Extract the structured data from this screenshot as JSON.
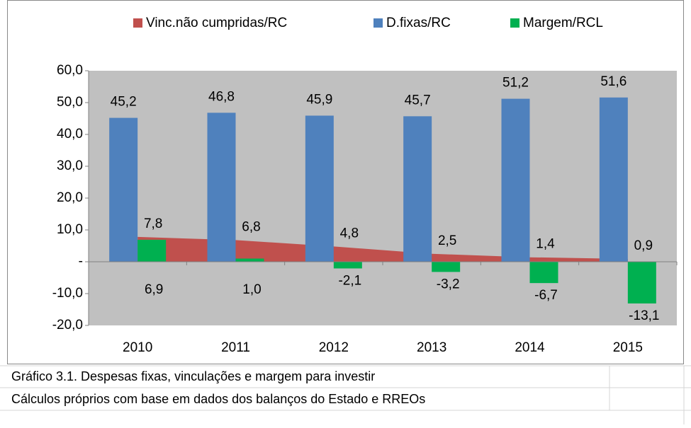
{
  "chart_data": {
    "type": "combo",
    "categories": [
      "2010",
      "2011",
      "2012",
      "2013",
      "2014",
      "2015"
    ],
    "series": [
      {
        "name": "Vinc.não cumpridas/RC",
        "color": "#c0504d",
        "kind": "area",
        "values": [
          7.8,
          6.8,
          4.8,
          2.5,
          1.4,
          0.9
        ],
        "value_labels": [
          "7,8",
          "6,8",
          "4,8",
          "2,5",
          "1,4",
          "0,9"
        ]
      },
      {
        "name": "D.fixas/RC",
        "color": "#4f81bd",
        "kind": "bar",
        "values": [
          45.2,
          46.8,
          45.9,
          45.7,
          51.2,
          51.6
        ],
        "value_labels": [
          "45,2",
          "46,8",
          "45,9",
          "45,7",
          "51,2",
          "51,6"
        ]
      },
      {
        "name": "Margem/RCL",
        "color": "#00b050",
        "kind": "bar",
        "values": [
          6.9,
          1.0,
          -2.1,
          -3.2,
          -6.7,
          -13.1
        ],
        "value_labels": [
          "6,9",
          "1,0",
          "-2,1",
          "-3,2",
          "-6,7",
          "-13,1"
        ]
      }
    ],
    "ylim": [
      -20,
      60
    ],
    "yticks": [
      {
        "value": -20,
        "label": "-20,0"
      },
      {
        "value": -10,
        "label": "-10,0"
      },
      {
        "value": 0,
        "label": "-"
      },
      {
        "value": 10,
        "label": "10,0"
      },
      {
        "value": 20,
        "label": "20,0"
      },
      {
        "value": 30,
        "label": "30,0"
      },
      {
        "value": 40,
        "label": "40,0"
      },
      {
        "value": 50,
        "label": "50,0"
      },
      {
        "value": 60,
        "label": "60,0"
      }
    ],
    "grid": false,
    "legend": "top",
    "plot_background": "#c0c0c0",
    "negative_label_color": "#ff0000"
  },
  "caption": "Gráfico 3.1. Despesas fixas, vinculações e margem para investir",
  "source": "Cálculos próprios com base em dados dos balanços do Estado e RREOs"
}
